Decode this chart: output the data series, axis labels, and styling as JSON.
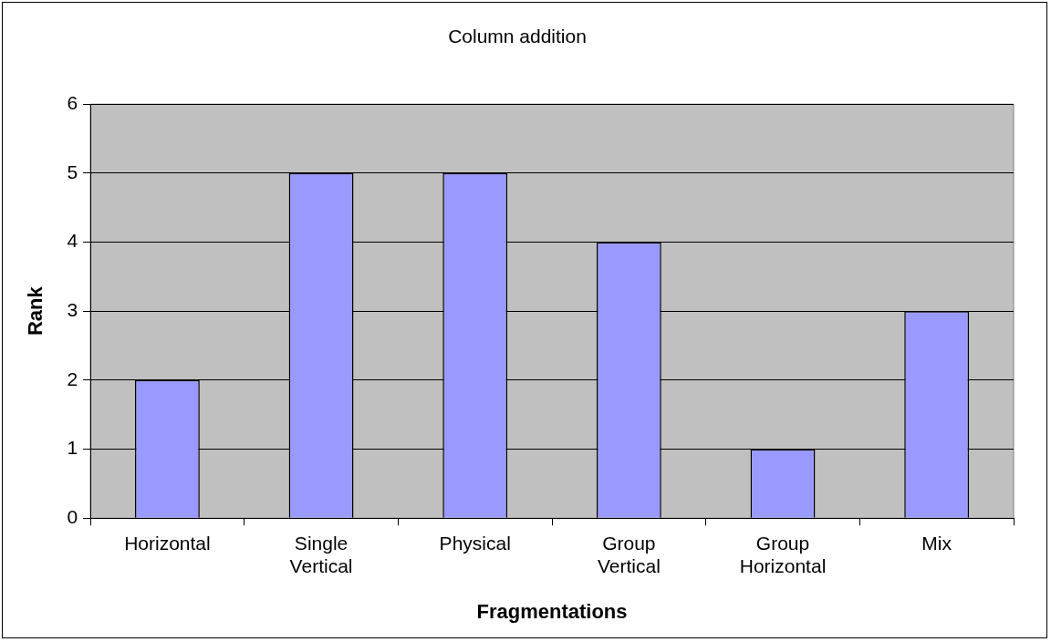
{
  "chart_data": {
    "type": "bar",
    "title": "Column addition",
    "xlabel": "Fragmentations",
    "ylabel": "Rank",
    "categories": [
      "Horizontal",
      "Single Vertical",
      "Physical",
      "Group Vertical",
      "Group Horizontal",
      "Mix"
    ],
    "values": [
      2,
      5,
      5,
      4,
      1,
      3
    ],
    "color": "#9999ff",
    "ylim": [
      0,
      6
    ],
    "yticks": [
      0,
      1,
      2,
      3,
      4,
      5,
      6
    ],
    "grid": "y",
    "legend": false
  }
}
